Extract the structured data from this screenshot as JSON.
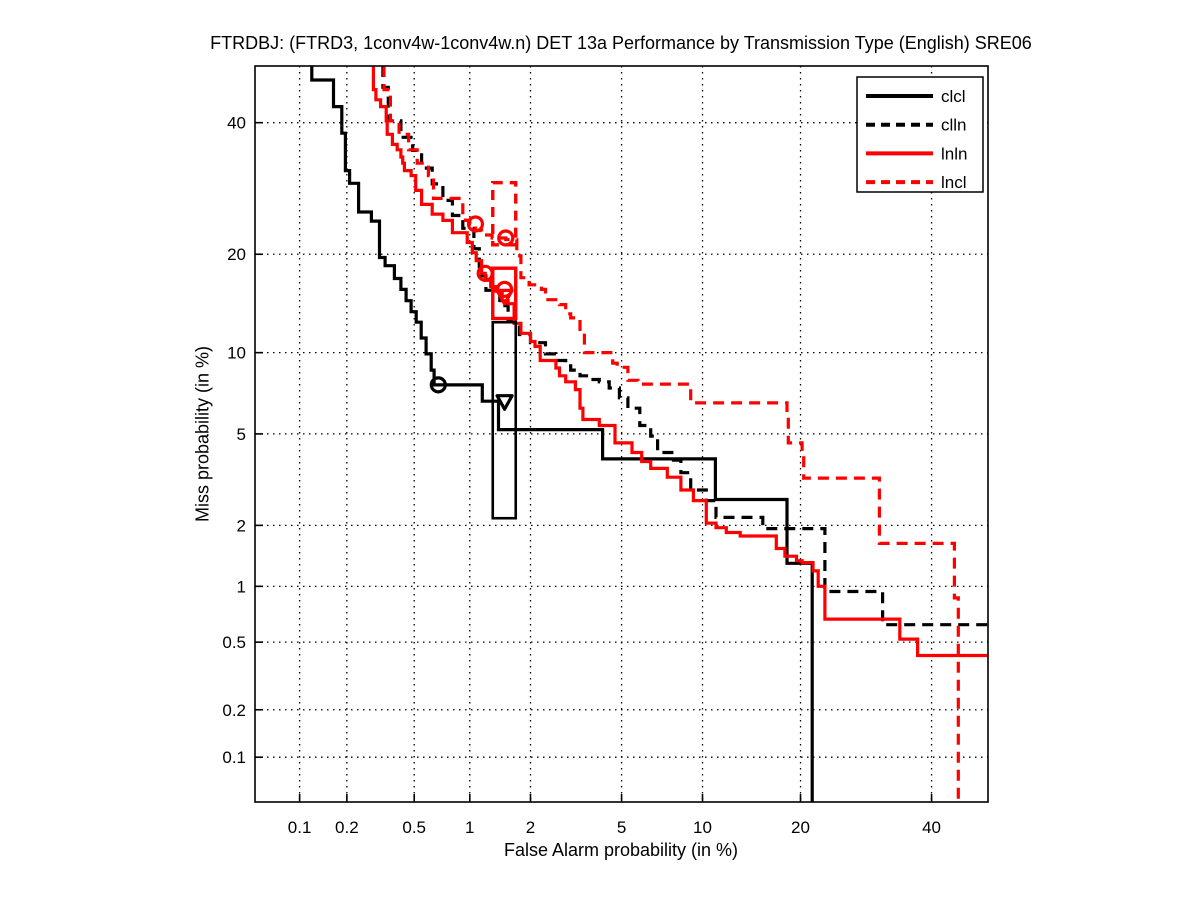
{
  "title": "FTRDBJ: (FTRD3, 1conv4w-1conv4w.n) DET 13a Performance by Transmission Type (English) SRE06",
  "chart_data": {
    "type": "line",
    "variant": "DET-curve",
    "title": "FTRDBJ: (FTRD3, 1conv4w-1conv4w.n) DET 13a Performance by Transmission Type (English) SRE06",
    "xlabel": "False Alarm probability (in %)",
    "ylabel": "Miss probability (in %)",
    "axis_scale": "probit (normal deviate)",
    "xlim_pct": [
      0.05,
      50
    ],
    "ylim_pct": [
      0.05,
      50
    ],
    "x_ticks": [
      0.1,
      0.2,
      0.5,
      1,
      2,
      5,
      10,
      20,
      40
    ],
    "y_ticks": [
      0.1,
      0.2,
      0.5,
      1,
      2,
      5,
      10,
      20,
      40
    ],
    "x_tick_labels": [
      "0.1",
      "0.2",
      "0.5",
      "1",
      "2",
      "5",
      "10",
      "20",
      "40"
    ],
    "y_tick_labels": [
      "0.1",
      "0.2",
      "0.5",
      "1",
      "2",
      "5",
      "10",
      "20",
      "40"
    ],
    "grid": "dotted",
    "colors": {
      "black": "#000000",
      "red": "#ff0000",
      "background": "#ffffff"
    },
    "legend": {
      "position": "top-right"
    },
    "series": [
      {
        "name": "clcl",
        "color": "#000000",
        "dash": "solid",
        "points_fa_miss_pct": [
          [
            0.12,
            50
          ],
          [
            0.12,
            47.5
          ],
          [
            0.165,
            47.5
          ],
          [
            0.165,
            42.8
          ],
          [
            0.186,
            42.8
          ],
          [
            0.186,
            38.2
          ],
          [
            0.196,
            38.2
          ],
          [
            0.196,
            32.0
          ],
          [
            0.208,
            32.0
          ],
          [
            0.208,
            30.0
          ],
          [
            0.236,
            30.0
          ],
          [
            0.236,
            25.7
          ],
          [
            0.282,
            25.7
          ],
          [
            0.282,
            24.4
          ],
          [
            0.315,
            24.4
          ],
          [
            0.315,
            19.6
          ],
          [
            0.34,
            19.6
          ],
          [
            0.34,
            18.6
          ],
          [
            0.385,
            18.6
          ],
          [
            0.385,
            17.1
          ],
          [
            0.42,
            17.1
          ],
          [
            0.42,
            15.9
          ],
          [
            0.45,
            15.9
          ],
          [
            0.45,
            14.7
          ],
          [
            0.48,
            14.7
          ],
          [
            0.48,
            13.6
          ],
          [
            0.513,
            13.6
          ],
          [
            0.513,
            12.6
          ],
          [
            0.547,
            12.6
          ],
          [
            0.547,
            11.2
          ],
          [
            0.583,
            11.2
          ],
          [
            0.583,
            9.9
          ],
          [
            0.622,
            9.9
          ],
          [
            0.622,
            8.7
          ],
          [
            0.645,
            8.7
          ],
          [
            0.645,
            7.7
          ],
          [
            1.16,
            7.7
          ],
          [
            1.16,
            6.7
          ],
          [
            1.4,
            6.7
          ],
          [
            1.4,
            5.2
          ],
          [
            4.18,
            5.2
          ],
          [
            4.18,
            3.95
          ],
          [
            11.05,
            3.95
          ],
          [
            11.05,
            2.63
          ],
          [
            18.35,
            2.63
          ],
          [
            18.35,
            1.31
          ],
          [
            21.5,
            1.31
          ],
          [
            21.5,
            0.05
          ]
        ]
      },
      {
        "name": "clln",
        "color": "#000000",
        "dash": "dashed",
        "points_fa_miss_pct": [
          [
            0.33,
            50
          ],
          [
            0.355,
            46.2
          ],
          [
            0.42,
            40.3
          ],
          [
            0.49,
            37.5
          ],
          [
            0.55,
            35.3
          ],
          [
            0.63,
            32.4
          ],
          [
            0.72,
            29.9
          ],
          [
            0.81,
            27.4
          ],
          [
            0.92,
            25.2
          ],
          [
            1.05,
            23.4
          ],
          [
            1.12,
            20.7
          ],
          [
            1.21,
            17.4
          ],
          [
            1.42,
            15.8
          ],
          [
            1.56,
            14.2
          ],
          [
            1.77,
            12.7
          ],
          [
            2.0,
            11.5
          ],
          [
            2.35,
            10.8
          ],
          [
            2.62,
            9.9
          ],
          [
            2.9,
            9.4
          ],
          [
            3.05,
            9.0
          ],
          [
            3.35,
            8.7
          ],
          [
            3.65,
            8.3
          ],
          [
            4.05,
            8.05
          ],
          [
            4.45,
            7.9
          ],
          [
            4.9,
            7.5
          ],
          [
            5.3,
            6.9
          ],
          [
            5.9,
            6.3
          ],
          [
            6.5,
            5.4
          ],
          [
            6.9,
            4.9
          ],
          [
            7.9,
            4.2
          ],
          [
            8.4,
            3.9
          ],
          [
            9.1,
            3.45
          ],
          [
            10.3,
            2.9
          ],
          [
            11.1,
            2.6
          ],
          [
            11.3,
            2.18
          ],
          [
            15.6,
            2.18
          ],
          [
            15.6,
            2.0
          ],
          [
            17.5,
            1.93
          ],
          [
            23.2,
            1.93
          ],
          [
            23.2,
            0.94
          ],
          [
            31.8,
            0.94
          ],
          [
            31.8,
            0.625
          ],
          [
            50,
            0.625
          ]
        ]
      },
      {
        "name": "lnln",
        "color": "#ff0000",
        "dash": "solid",
        "points_fa_miss_pct": [
          [
            0.29,
            50
          ],
          [
            0.3,
            45.8
          ],
          [
            0.32,
            44.0
          ],
          [
            0.345,
            42.8
          ],
          [
            0.35,
            40.3
          ],
          [
            0.375,
            38.0
          ],
          [
            0.4,
            36.3
          ],
          [
            0.42,
            35.4
          ],
          [
            0.43,
            34.2
          ],
          [
            0.44,
            33.2
          ],
          [
            0.48,
            32.0
          ],
          [
            0.51,
            31.2
          ],
          [
            0.51,
            30.4
          ],
          [
            0.55,
            28.9
          ],
          [
            0.63,
            26.8
          ],
          [
            0.72,
            25.4
          ],
          [
            0.81,
            24.5
          ],
          [
            0.97,
            22.8
          ],
          [
            1.03,
            21.5
          ],
          [
            1.08,
            20.2
          ],
          [
            1.15,
            19.2
          ],
          [
            1.2,
            17.7
          ],
          [
            1.28,
            16.9
          ],
          [
            1.35,
            16.2
          ],
          [
            1.46,
            15.7
          ],
          [
            1.56,
            14.7
          ],
          [
            1.67,
            14.4
          ],
          [
            1.8,
            12.5
          ],
          [
            2.0,
            11.6
          ],
          [
            2.1,
            10.9
          ],
          [
            2.22,
            10.5
          ],
          [
            2.62,
            9.4
          ],
          [
            2.72,
            8.85
          ],
          [
            2.9,
            8.3
          ],
          [
            3.2,
            7.9
          ],
          [
            3.35,
            7.4
          ],
          [
            3.45,
            6.3
          ],
          [
            4.05,
            5.7
          ],
          [
            4.7,
            5.4
          ],
          [
            5.5,
            4.6
          ],
          [
            6.0,
            4.2
          ],
          [
            6.5,
            3.85
          ],
          [
            7.5,
            3.6
          ],
          [
            8.4,
            3.3
          ],
          [
            9.3,
            2.9
          ],
          [
            10.3,
            2.6
          ],
          [
            11.1,
            2.05
          ],
          [
            12.0,
            1.95
          ],
          [
            13.3,
            1.85
          ],
          [
            17.1,
            1.78
          ],
          [
            18.1,
            1.55
          ],
          [
            19.5,
            1.42
          ],
          [
            20.2,
            1.35
          ],
          [
            21.6,
            1.32
          ],
          [
            22.3,
            1.2
          ],
          [
            23.2,
            1.0
          ],
          [
            23.3,
            0.67
          ],
          [
            34.6,
            0.67
          ],
          [
            34.6,
            0.52
          ],
          [
            37.6,
            0.52
          ],
          [
            37.6,
            0.42
          ],
          [
            50,
            0.42
          ]
        ]
      },
      {
        "name": "lncl",
        "color": "#ff0000",
        "dash": "dashed",
        "points_fa_miss_pct": [
          [
            0.335,
            50
          ],
          [
            0.365,
            45.8
          ],
          [
            0.41,
            40.3
          ],
          [
            0.465,
            38.0
          ],
          [
            0.52,
            35.4
          ],
          [
            0.6,
            33.2
          ],
          [
            0.64,
            31.2
          ],
          [
            0.77,
            27.7
          ],
          [
            0.92,
            27.7
          ],
          [
            0.95,
            25.2
          ],
          [
            1.0,
            24.5
          ],
          [
            1.07,
            24.0
          ],
          [
            1.15,
            23.1
          ],
          [
            1.3,
            22.5
          ],
          [
            1.52,
            22.1
          ],
          [
            1.72,
            21.9
          ],
          [
            1.8,
            19.8
          ],
          [
            1.97,
            17.2
          ],
          [
            2.25,
            16.4
          ],
          [
            2.35,
            15.9
          ],
          [
            2.72,
            14.8
          ],
          [
            2.9,
            14.3
          ],
          [
            3.05,
            13.4
          ],
          [
            3.35,
            13.0
          ],
          [
            3.5,
            11.7
          ],
          [
            3.6,
            10.0
          ],
          [
            4.6,
            10.0
          ],
          [
            4.8,
            9.2
          ],
          [
            5.3,
            8.9
          ],
          [
            5.8,
            8.0
          ],
          [
            5.9,
            7.75
          ],
          [
            9.1,
            7.75
          ],
          [
            9.1,
            6.6
          ],
          [
            18.35,
            6.6
          ],
          [
            18.5,
            5.9
          ],
          [
            20.2,
            4.6
          ],
          [
            20.4,
            4.2
          ],
          [
            22.8,
            3.27
          ],
          [
            31.3,
            3.27
          ],
          [
            31.3,
            2.5
          ],
          [
            32.8,
            1.64
          ],
          [
            44.0,
            1.64
          ],
          [
            44.0,
            0.87
          ],
          [
            44.7,
            0.87
          ],
          [
            44.7,
            0.05
          ]
        ]
      }
    ],
    "markers": [
      {
        "shape": "circle",
        "color": "#000000",
        "fa": 0.68,
        "miss": 7.7
      },
      {
        "shape": "triangle-down",
        "color": "#000000",
        "fa": 1.5,
        "miss": 6.7
      },
      {
        "shape": "circle",
        "color": "#ff0000",
        "fa": 1.07,
        "miss": 24.0
      },
      {
        "shape": "circle",
        "color": "#ff0000",
        "fa": 1.52,
        "miss": 22.1
      },
      {
        "shape": "circle",
        "color": "#ff0000",
        "fa": 1.2,
        "miss": 17.7
      },
      {
        "shape": "circle",
        "color": "#ff0000",
        "fa": 1.5,
        "miss": 15.9
      },
      {
        "shape": "triangle-down",
        "color": "#ff0000",
        "fa": 1.5,
        "miss": 15.2
      }
    ],
    "confidence_boxes": [
      {
        "color": "#000000",
        "dash": "solid",
        "fa": [
          1.31,
          1.7
        ],
        "miss": [
          2.16,
          12.6
        ]
      },
      {
        "color": "#ff0000",
        "dash": "solid",
        "fa": [
          1.31,
          1.7
        ],
        "miss": [
          12.95,
          18.3
        ]
      },
      {
        "color": "#ff0000",
        "dash": "dashed",
        "fa": [
          1.31,
          1.7
        ],
        "miss": [
          21.2,
          30.1
        ]
      }
    ]
  }
}
